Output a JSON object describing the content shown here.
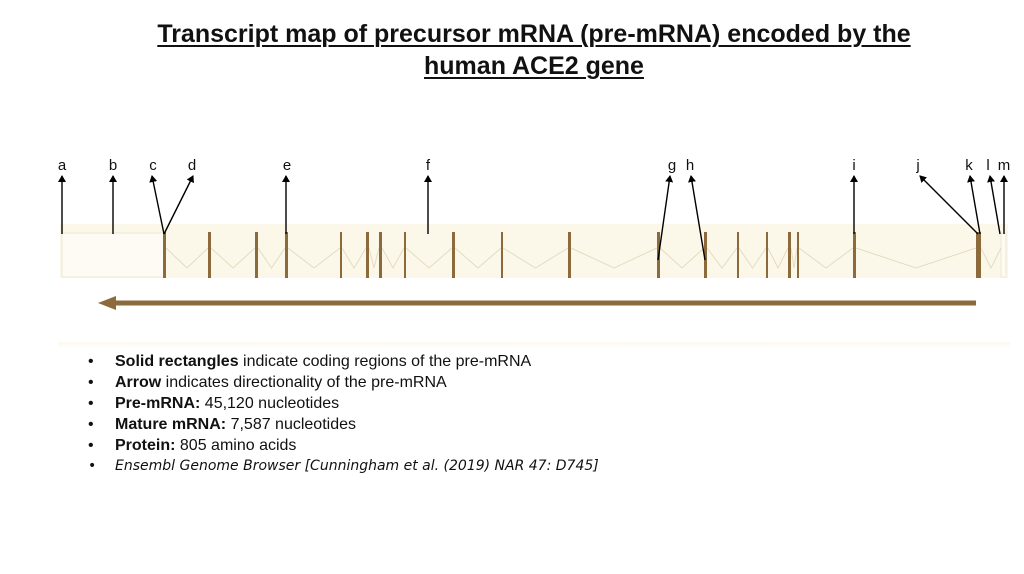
{
  "title": {
    "line1": "Transcript map of precursor mRNA (pre-mRNA) encoded by the",
    "line2": "human ACE2 gene"
  },
  "diagram": {
    "labels": [
      "a",
      "b",
      "c",
      "d",
      "e",
      "f",
      "g",
      "h",
      "i",
      "j",
      "k",
      "l",
      "m"
    ],
    "colors": {
      "exon": "#8c6a3c",
      "band": "#fbf8ea",
      "band_border": "#efe8d2",
      "intron": "#e6dbc0",
      "arrow": "#8c6a3c",
      "pointer": "#000000"
    }
  },
  "bullets": [
    {
      "bold": "Solid rectangles",
      "text": " indicate coding regions of the pre-mRNA"
    },
    {
      "bold": "Arrow",
      "text": " indicates directionality of the pre-mRNA"
    },
    {
      "bold": "Pre-mRNA:",
      "text": " 45,120 nucleotides"
    },
    {
      "bold": "Mature mRNA:",
      "text": " 7,587 nucleotides"
    },
    {
      "bold": "Protein:",
      "text": " 805 amino acids"
    }
  ],
  "citation": "Ensembl Genome Browser [Cunningham et al. (2019) NAR 47: D745]",
  "bullet_char": "•"
}
